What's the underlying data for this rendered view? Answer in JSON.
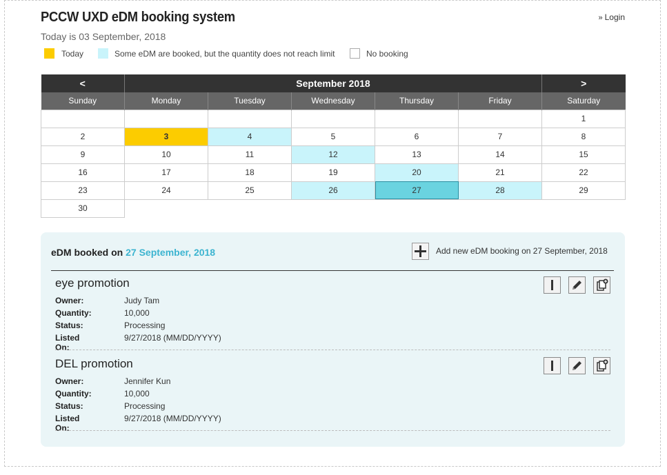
{
  "app": {
    "title": "PCCW UXD eDM booking system",
    "login_label": "Login",
    "today_text": "Today is 03 September, 2018"
  },
  "legend": [
    {
      "label": "Today",
      "color": "#fccc00"
    },
    {
      "label": "Some eDM are booked, but the quantity does not reach limit",
      "color": "#c9f4fb"
    },
    {
      "label": "No booking",
      "color": "#ffffff"
    }
  ],
  "calendar": {
    "prev_label": "<",
    "next_label": ">",
    "month_label": "September 2018",
    "weekdays": [
      "Sunday",
      "Monday",
      "Tuesday",
      "Wednesday",
      "Thursday",
      "Friday",
      "Saturday"
    ],
    "weeks": [
      [
        "",
        "",
        "",
        "",
        "",
        "",
        "1"
      ],
      [
        "2",
        "3",
        "4",
        "5",
        "6",
        "7",
        "8"
      ],
      [
        "9",
        "10",
        "11",
        "12",
        "13",
        "14",
        "15"
      ],
      [
        "16",
        "17",
        "18",
        "19",
        "20",
        "21",
        "22"
      ],
      [
        "23",
        "24",
        "25",
        "26",
        "27",
        "28",
        "29"
      ],
      [
        "30"
      ]
    ],
    "today": "3",
    "selected": "27",
    "booked": [
      "4",
      "12",
      "20",
      "26",
      "27",
      "28"
    ],
    "colors": {
      "today": "#fccc00",
      "booked": "#c9f4fb",
      "selected": "#6ad3e0",
      "header": "#333333",
      "weekday_header": "#666666"
    }
  },
  "panel": {
    "booked_prefix": "eDM booked on",
    "booked_date": "27 September, 2018",
    "add_label": "Add new eDM booking on 27 September, 2018",
    "accent": "#3cb4d0"
  },
  "field_labels": {
    "owner": "Owner:",
    "quantity": "Quantity:",
    "status": "Status:",
    "listed_on": "Listed On:"
  },
  "bookings": [
    {
      "name": "eye promotion",
      "owner": "Judy Tam",
      "quantity": "10,000",
      "status": "Processing",
      "listed_on": "9/27/2018 (MM/DD/YYYY)"
    },
    {
      "name": "DEL promotion",
      "owner": "Jennifer Kun",
      "quantity": "10,000",
      "status": "Processing",
      "listed_on": "9/27/2018 (MM/DD/YYYY)"
    }
  ],
  "icons": {
    "info": "info-icon",
    "edit": "pencil-icon",
    "duplicate": "copy-add-icon",
    "add": "plus-icon"
  }
}
